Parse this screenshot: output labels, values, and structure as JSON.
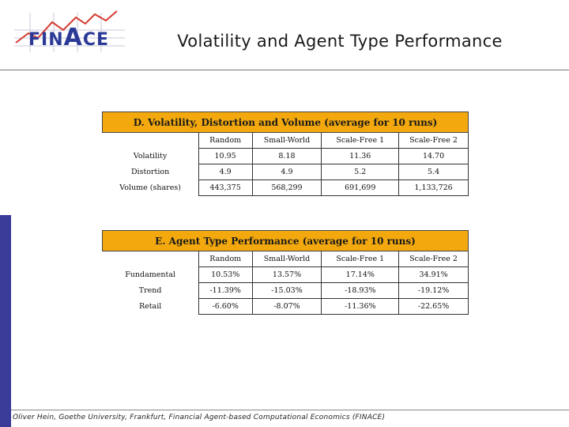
{
  "header": {
    "logo_text_pre": "FIN",
    "logo_text_big": "A",
    "logo_text_post": "CE",
    "title": "Volatility and Agent Type Performance"
  },
  "table1": {
    "caption": "D. Volatility, Distortion and Volume (average for 10 runs)",
    "columns": [
      "Random",
      "Small-World",
      "Scale-Free 1",
      "Scale-Free 2"
    ],
    "rows": [
      {
        "label": "Volatility",
        "values": [
          "10.95",
          "8.18",
          "11.36",
          "14.70"
        ]
      },
      {
        "label": "Distortion",
        "values": [
          "4.9",
          "4.9",
          "5.2",
          "5.4"
        ]
      },
      {
        "label": "Volume (shares)",
        "values": [
          "443,375",
          "568,299",
          "691,699",
          "1,133,726"
        ]
      }
    ]
  },
  "table2": {
    "caption": "E. Agent Type Performance (average for 10 runs)",
    "columns": [
      "Random",
      "Small-World",
      "Scale-Free 1",
      "Scale-Free 2"
    ],
    "rows": [
      {
        "label": "Fundamental",
        "values": [
          "10.53%",
          "13.57%",
          "17.14%",
          "34.91%"
        ]
      },
      {
        "label": "Trend",
        "values": [
          "-11.39%",
          "-15.03%",
          "-18.93%",
          "-19.12%"
        ]
      },
      {
        "label": "Retail",
        "values": [
          "-6.60%",
          "-8.07%",
          "-11.36%",
          "-22.65%"
        ]
      }
    ]
  },
  "footer": {
    "text": "Oliver Hein, Goethe University, Frankfurt, Financial Agent-based Computational Economics (FINACE)"
  },
  "colors": {
    "caption_bg": "#f3a90e",
    "accent_bar": "#3a3a98",
    "logo_blue": "#2b3a97",
    "logo_red": "#d43a2f"
  }
}
